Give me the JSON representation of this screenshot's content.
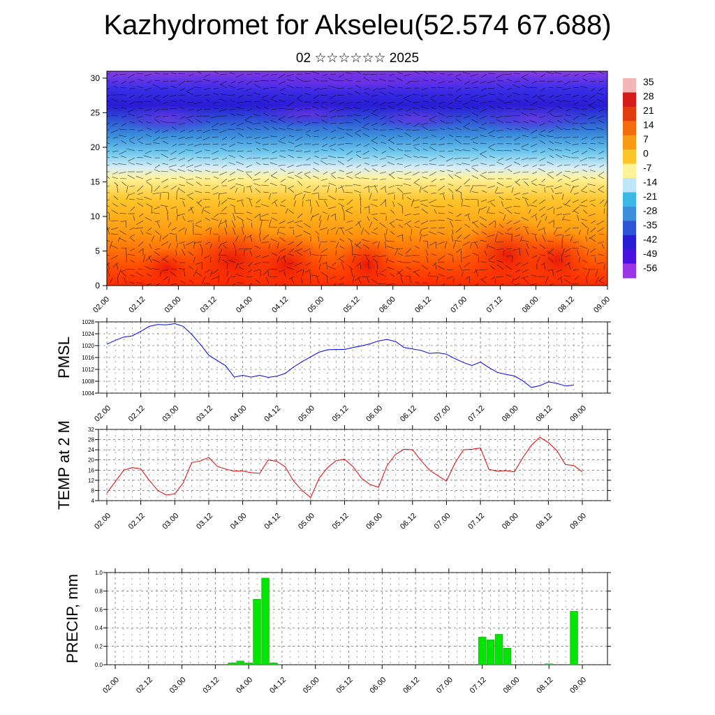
{
  "header": {
    "title": "Kazhydromet for Akseleu(52.574 67.688)",
    "subtitle": "02 ☆☆☆☆☆☆ 2025"
  },
  "chart_data": [
    {
      "type": "heatmap",
      "title": "",
      "ylim": [
        0,
        31
      ],
      "yticks": [
        0,
        5,
        10,
        15,
        20,
        25,
        30
      ],
      "xticks": [
        "02.00",
        "02.12",
        "03.00",
        "03.12",
        "04.00",
        "04.12",
        "05.00",
        "05.12",
        "06.00",
        "06.12",
        "07.00",
        "07.12",
        "08.00",
        "08.12",
        "09.00"
      ],
      "colorbar": {
        "labels": [
          "35",
          "28",
          "21",
          "14",
          "7",
          "0",
          "-7",
          "-14",
          "-21",
          "-28",
          "-35",
          "-42",
          "-49",
          "-56"
        ],
        "colors": [
          "#f2b6b6",
          "#d41a1a",
          "#e23d0e",
          "#f36b0c",
          "#f99a16",
          "#fcc52a",
          "#fff39a",
          "#bfe6f6",
          "#3cb8e6",
          "#3b8fdb",
          "#2e55d6",
          "#2a1bd4",
          "#4a10e0",
          "#9a36e6"
        ]
      },
      "overlay": "wind vectors"
    },
    {
      "type": "line",
      "ylabel": "PMSL",
      "ylim": [
        1004,
        1028
      ],
      "yticks": [
        1004,
        1008,
        1012,
        1016,
        1020,
        1024,
        1028
      ],
      "xticks": [
        "02.00",
        "02.12",
        "03.00",
        "03.12",
        "04.00",
        "04.12",
        "05.00",
        "05.12",
        "06.00",
        "06.12",
        "07.00",
        "07.12",
        "08.00",
        "08.12",
        "09.00"
      ],
      "x_step_hours": 3,
      "color": "#0000ff",
      "values": [
        1020.5,
        1021.8,
        1022.9,
        1023.3,
        1024.8,
        1026.5,
        1027.1,
        1027.0,
        1027.4,
        1026.5,
        1023.8,
        1020.5,
        1016.8,
        1015.0,
        1013.2,
        1009.4,
        1010.0,
        1009.4,
        1010.0,
        1009.3,
        1009.7,
        1010.6,
        1012.8,
        1014.6,
        1016.2,
        1017.8,
        1018.6,
        1018.7,
        1018.7,
        1019.4,
        1019.9,
        1020.6,
        1021.6,
        1022.1,
        1021.4,
        1019.4,
        1018.9,
        1018.4,
        1017.4,
        1017.6,
        1017.1,
        1015.6,
        1014.3,
        1013.3,
        1014.5,
        1012.6,
        1011.0,
        1010.3,
        1009.8,
        1008.1,
        1005.9,
        1006.5,
        1007.8,
        1007.3,
        1006.4,
        1006.7
      ]
    },
    {
      "type": "line",
      "ylabel": "TEMP at 2 M",
      "ylim": [
        4,
        32
      ],
      "yticks": [
        4,
        8,
        12,
        16,
        20,
        24,
        28,
        32
      ],
      "xticks": [
        "02.00",
        "02.12",
        "03.00",
        "03.12",
        "04.00",
        "04.12",
        "05.00",
        "05.12",
        "06.00",
        "06.12",
        "07.00",
        "07.12",
        "08.00",
        "08.12",
        "09.00"
      ],
      "x_step_hours": 3,
      "color": "#e60000",
      "values": [
        7.0,
        11.5,
        16.0,
        17.0,
        16.5,
        12.0,
        8.0,
        6.2,
        6.7,
        11.0,
        19.0,
        19.6,
        21.0,
        17.5,
        16.4,
        15.6,
        15.6,
        15.0,
        14.7,
        20.0,
        19.5,
        17.3,
        11.7,
        8.0,
        5.2,
        12.8,
        17.0,
        19.7,
        20.3,
        17.3,
        12.8,
        10.3,
        9.3,
        17.8,
        22.2,
        24.2,
        24.0,
        19.8,
        16.0,
        13.8,
        11.7,
        18.8,
        24.0,
        24.2,
        24.7,
        16.3,
        15.6,
        15.8,
        15.3,
        21.0,
        25.8,
        28.9,
        26.8,
        23.7,
        18.2,
        17.8,
        15.3
      ]
    },
    {
      "type": "bar",
      "ylabel": "PRECIP, mm",
      "ylim": [
        0,
        1.0
      ],
      "yticks": [
        "0.0",
        "0.2",
        "0.4",
        "0.6",
        "0.8",
        "1.0"
      ],
      "xticks": [
        "02.00",
        "02.12",
        "03.00",
        "03.12",
        "04.00",
        "04.12",
        "05.00",
        "05.12",
        "06.00",
        "06.12",
        "07.00",
        "07.12",
        "08.00",
        "08.12",
        "09.00"
      ],
      "x_step_hours": 3,
      "color": "#00e600",
      "values": [
        0,
        0,
        0,
        0,
        0,
        0,
        0,
        0,
        0,
        0,
        0,
        0,
        0,
        0,
        0.02,
        0.04,
        0.02,
        0.71,
        0.94,
        0.02,
        0,
        0,
        0,
        0,
        0,
        0,
        0,
        0,
        0,
        0,
        0,
        0,
        0,
        0,
        0,
        0,
        0,
        0,
        0,
        0,
        0,
        0,
        0,
        0,
        0.3,
        0.27,
        0.33,
        0.18,
        0,
        0,
        0,
        0,
        0.01,
        0,
        0,
        0.58
      ]
    }
  ]
}
